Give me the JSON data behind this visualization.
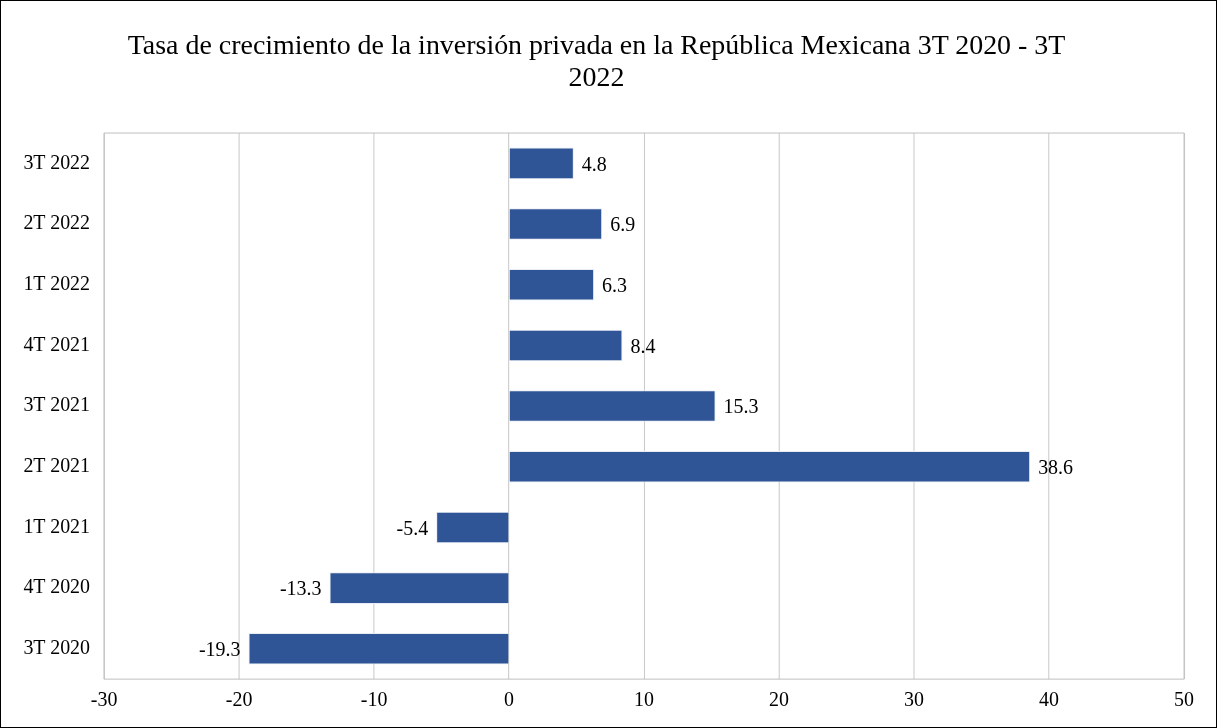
{
  "chart_data": {
    "type": "bar",
    "orientation": "horizontal",
    "title": "Tasa de crecimiento de la inversión privada en la República Mexicana 3T 2020 - 3T 2022",
    "categories": [
      "3T 2022",
      "2T 2022",
      "1T 2022",
      "4T 2021",
      "3T 2021",
      "2T 2021",
      "1T 2021",
      "4T 2020",
      "3T 2020"
    ],
    "values": [
      4.8,
      6.9,
      6.3,
      8.4,
      15.3,
      38.6,
      -5.4,
      -13.3,
      -19.3
    ],
    "color": "#2f5597",
    "xlim": [
      -30,
      50
    ],
    "xticks": [
      -30,
      -20,
      -10,
      0,
      10,
      20,
      30,
      40,
      50
    ],
    "grid": "x",
    "data_labels": true,
    "legend": false
  }
}
